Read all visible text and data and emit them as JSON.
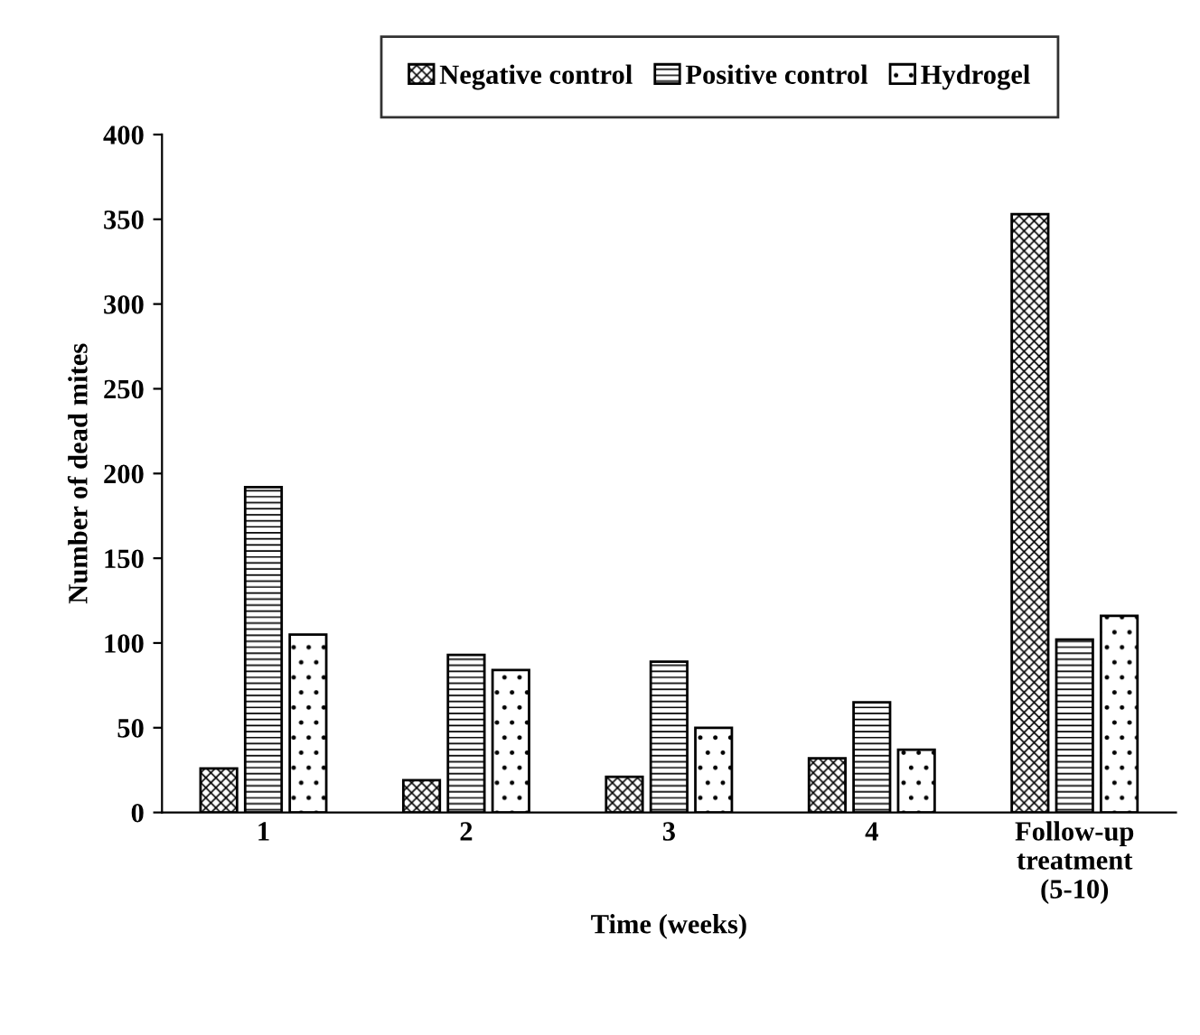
{
  "chart_data": {
    "type": "bar",
    "xlabel": "Time (weeks)",
    "ylabel": "Number of dead mites",
    "categories": [
      "1",
      "2",
      "3",
      "4",
      "Follow-up\ntreatment\n(5-10)"
    ],
    "series": [
      {
        "name": "Negative control",
        "color": "#000000",
        "values": [
          26,
          19,
          21,
          32,
          353
        ]
      },
      {
        "name": "Positive control",
        "color": "#000000",
        "values": [
          192,
          93,
          89,
          65,
          102
        ]
      },
      {
        "name": "Hydrogel",
        "color": "#000000",
        "values": [
          105,
          84,
          50,
          37,
          116
        ]
      }
    ],
    "ylim": [
      0,
      400
    ],
    "yticks": [
      0,
      50,
      100,
      150,
      200,
      250,
      300,
      350,
      400
    ],
    "grid": false,
    "legend": "top"
  }
}
